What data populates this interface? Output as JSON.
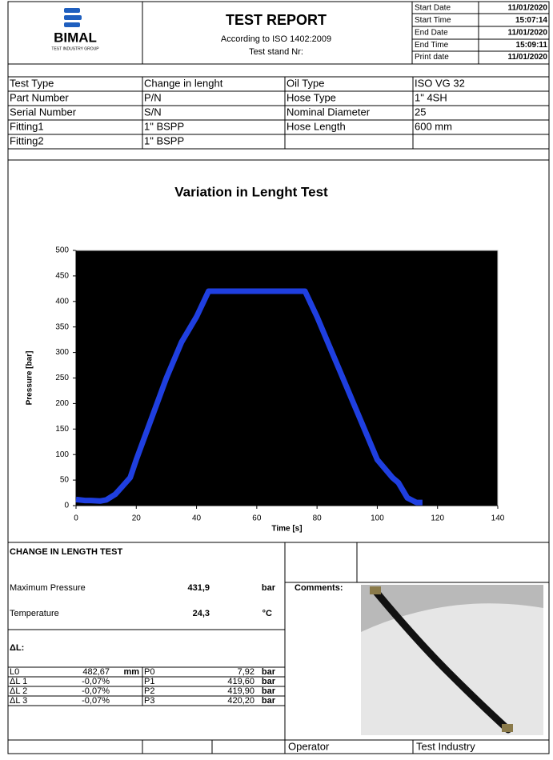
{
  "header": {
    "logo_name": "BIMAL",
    "logo_sub": "TEST INDUSTRY GROUP",
    "title": "TEST REPORT",
    "standard": "According to ISO 1402:2009",
    "stand": "Test stand Nr:",
    "dates": [
      [
        "Start Date",
        "11/01/2020"
      ],
      [
        "Start Time",
        "15:07:14"
      ],
      [
        "End Date",
        "11/01/2020"
      ],
      [
        "End Time",
        "15:09:11"
      ],
      [
        "Print date",
        "11/01/2020"
      ]
    ]
  },
  "info": {
    "rows": [
      [
        "Test Type",
        "Change in lenght",
        "Oil Type",
        "ISO VG 32"
      ],
      [
        "Part Number",
        "P/N",
        "Hose Type",
        "1\" 4SH"
      ],
      [
        "Serial Number",
        "S/N",
        "Nominal Diameter",
        "25"
      ],
      [
        "Fitting1",
        "1\" BSPP",
        "Hose Length",
        "600 mm"
      ],
      [
        "Fitting2",
        "1\" BSPP"
      ]
    ]
  },
  "chart_data": {
    "type": "line",
    "title": "Variation in Lenght Test",
    "x_label": "Time [s]",
    "y_label": "Pressure [bar]",
    "x": [
      0,
      3,
      5,
      8,
      10,
      13,
      15,
      18,
      20,
      25,
      30,
      35,
      40,
      44,
      50,
      60,
      70,
      76,
      80,
      85,
      90,
      95,
      100,
      105,
      107,
      110,
      113,
      115
    ],
    "series": [
      {
        "color": "#1f3fe0",
        "values": [
          12,
          10,
          10,
          9,
          11,
          22,
          35,
          55,
          90,
          170,
          250,
          320,
          370,
          420,
          420,
          420,
          420,
          420,
          370,
          300,
          230,
          160,
          90,
          55,
          45,
          15,
          6,
          6
        ]
      }
    ],
    "xlim": [
      0,
      140
    ],
    "xticks": [
      0,
      20,
      40,
      60,
      80,
      100,
      120,
      140
    ],
    "ylim": [
      0,
      500
    ],
    "yticks": [
      0,
      50,
      100,
      150,
      200,
      250,
      300,
      350,
      400,
      450,
      500
    ],
    "grid": true,
    "minor_x_grid_step": 5
  },
  "results": {
    "title": "CHANGE IN LENGTH TEST",
    "max_label": "Maximum Pressure",
    "max_value": "431,9",
    "max_unit": "bar",
    "temp_label": "Temperature",
    "temp_value": "24,3",
    "temp_unit": "°C",
    "dl_label": "ΔL:",
    "rows": [
      {
        "label": "L0",
        "value": "482,67",
        "unit": "mm",
        "p_label": "P0",
        "p_value": "7,92",
        "p_unit": "bar"
      },
      {
        "label": "ΔL 1",
        "value": "-0,07%",
        "p_label": "P1",
        "p_value": "419,60",
        "p_unit": "bar"
      },
      {
        "label": "ΔL 2",
        "value": "-0,07%",
        "p_label": "P2",
        "p_value": "419,90",
        "p_unit": "bar"
      },
      {
        "label": "ΔL 3",
        "value": "-0,07%",
        "p_label": "P3",
        "p_value": "420,20",
        "p_unit": "bar"
      }
    ]
  },
  "comments_label": "Comments:",
  "footer": {
    "operator": "Operator",
    "company": "Test Industry"
  }
}
